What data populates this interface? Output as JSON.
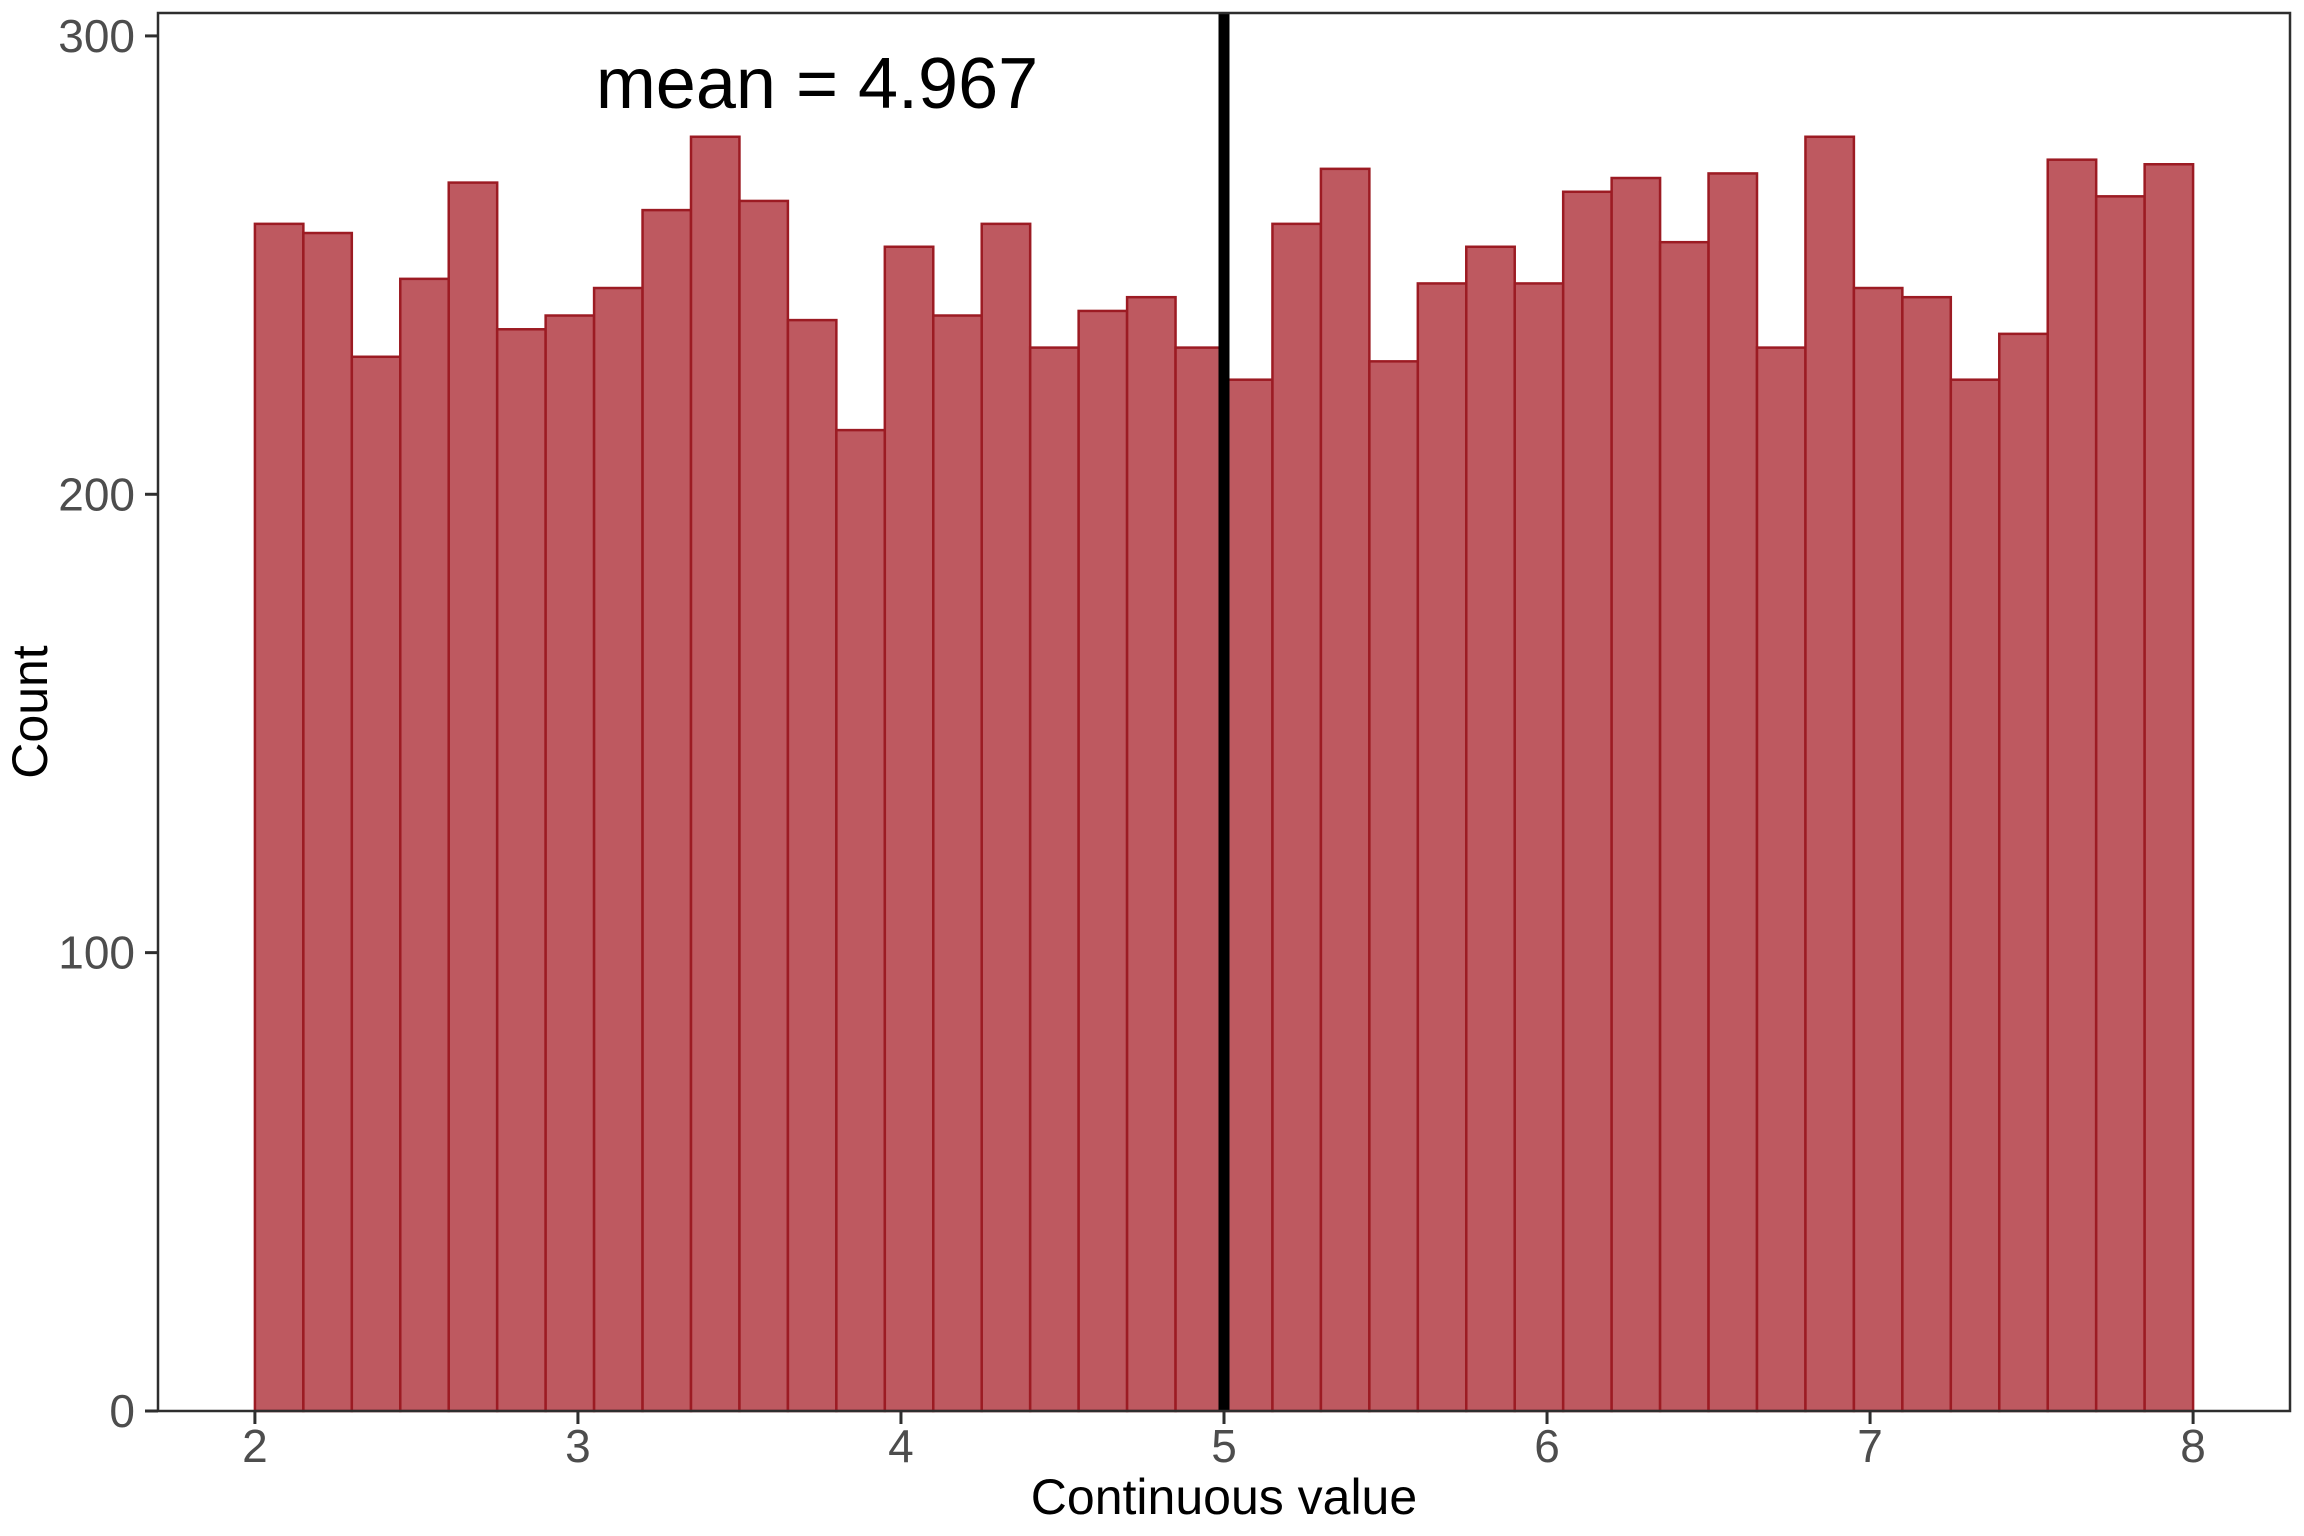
{
  "chart_data": {
    "type": "bar",
    "subtype": "histogram",
    "title": "",
    "annotation": "mean = 4.967",
    "mean_value": 4.967,
    "mean_line_x": 5.0,
    "annotation_pos": {
      "x": 3.74,
      "y": 290
    },
    "xlabel": "Continuous value",
    "ylabel": "Count",
    "bin_start": 2.0,
    "bin_width": 0.15,
    "counts": [
      259,
      257,
      230,
      247,
      268,
      236,
      239,
      245,
      262,
      278,
      264,
      238,
      214,
      254,
      239,
      259,
      232,
      240,
      243,
      232,
      225,
      259,
      271,
      229,
      246,
      254,
      246,
      266,
      269,
      255,
      270,
      232,
      278,
      245,
      243,
      225,
      235,
      273,
      265,
      272
    ],
    "x_ticks": [
      2,
      3,
      4,
      5,
      6,
      7,
      8
    ],
    "y_ticks": [
      0,
      100,
      200,
      300
    ],
    "x_range": [
      1.7,
      8.3
    ],
    "y_range": [
      0,
      305
    ],
    "grid": "off",
    "legend": "none",
    "colors": {
      "bar_fill": "#BE5960",
      "bar_stroke": "#9C1B23",
      "mean_line": "#000000",
      "panel_border": "#2E2E2E",
      "tick_mark": "#2E2E2E",
      "tick_label": "#4D4D4D",
      "axis_title": "#000000",
      "annotation_text": "#000000",
      "background": "#FFFFFF"
    }
  }
}
